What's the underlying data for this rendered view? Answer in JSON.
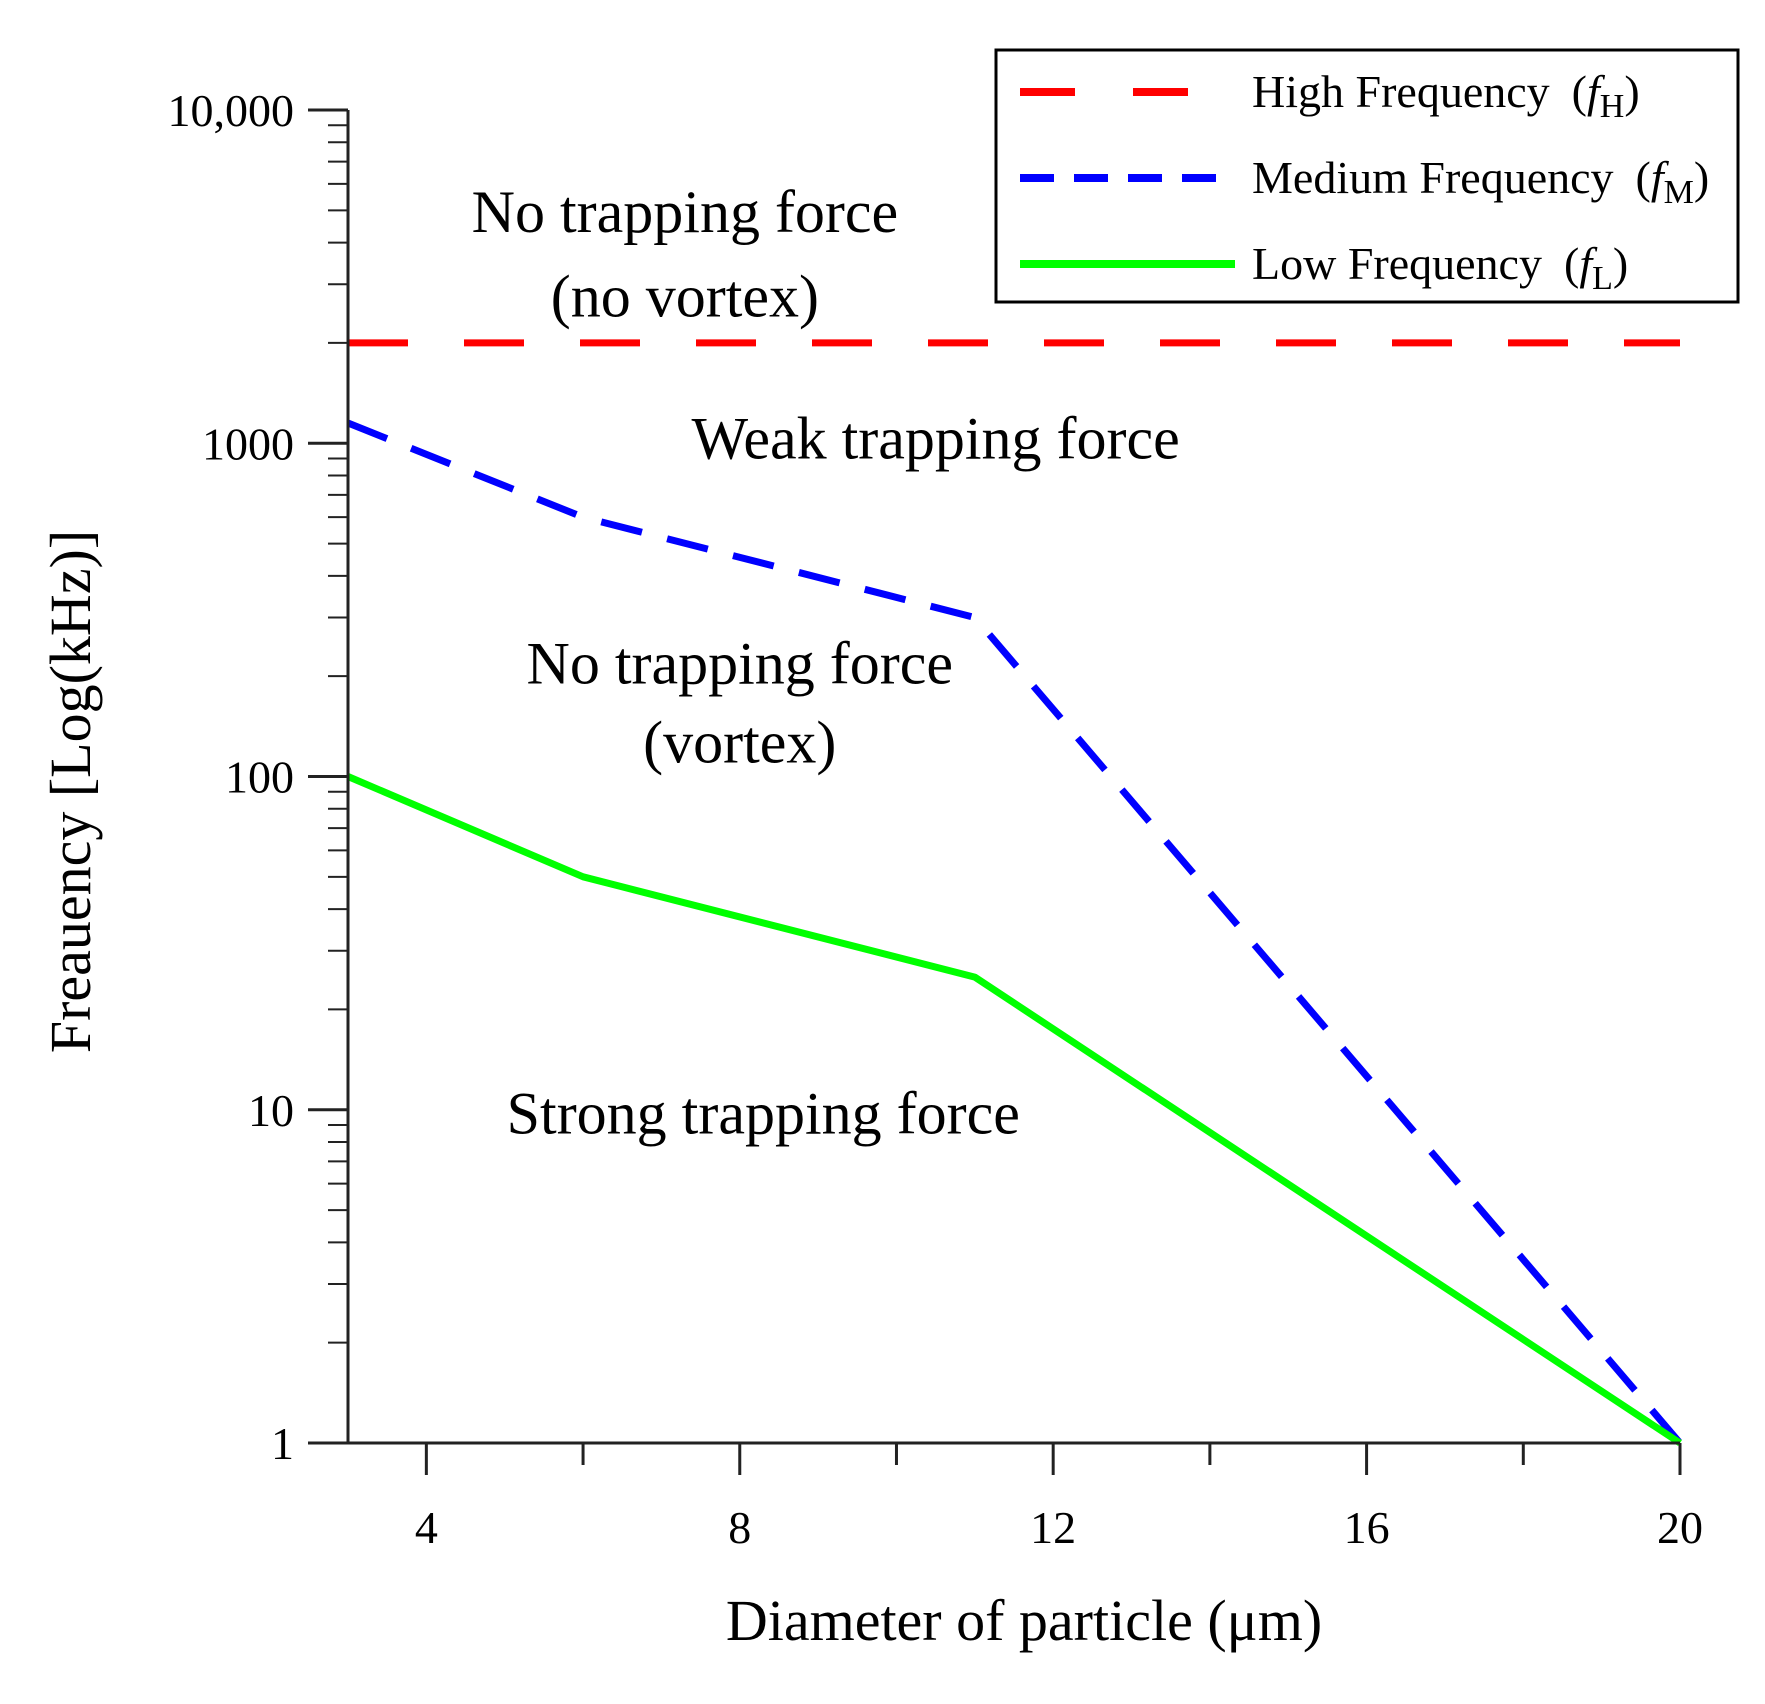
{
  "chart_data": {
    "type": "line",
    "title": "",
    "xlabel": "Diameter of particle (μm)",
    "ylabel": "Freauency [Log(kHz)]",
    "xlim": [
      3,
      20
    ],
    "ylim": [
      1,
      10000
    ],
    "yscale": "log",
    "x_ticks": [
      4,
      8,
      12,
      16,
      20
    ],
    "x_tick_labels": [
      "4",
      "8",
      "12",
      "16",
      "20"
    ],
    "y_ticks": [
      1,
      10,
      100,
      1000,
      10000
    ],
    "y_tick_labels": [
      "1",
      "10",
      "100",
      "1000",
      "10,000"
    ],
    "legend_position": "top-right",
    "series": [
      {
        "name": "High Frequency",
        "symbol": "f",
        "subscript": "H",
        "color": "#ff0000",
        "style": "long-dash",
        "x": [
          3,
          20
        ],
        "y": [
          2000,
          2000
        ]
      },
      {
        "name": "Medium Frequency",
        "symbol": "f",
        "subscript": "M",
        "color": "#0000ff",
        "style": "short-dash",
        "x": [
          3,
          6,
          11,
          20
        ],
        "y": [
          1150,
          600,
          300,
          1
        ]
      },
      {
        "name": "Low Frequency",
        "symbol": "f",
        "subscript": "L",
        "color": "#00ff00",
        "style": "solid",
        "x": [
          3,
          6,
          11,
          20
        ],
        "y": [
          100,
          50,
          25,
          1
        ]
      }
    ],
    "annotations": [
      {
        "id": "no-trap-no-vortex-1",
        "text": "No trapping force",
        "x": 7.3,
        "y": 4300
      },
      {
        "id": "no-trap-no-vortex-2",
        "text": "(no vortex)",
        "x": 7.3,
        "y": 2400
      },
      {
        "id": "weak-trap",
        "text": "Weak trapping force",
        "x": 10.5,
        "y": 900
      },
      {
        "id": "no-trap-vortex-1",
        "text": "No trapping force",
        "x": 8.0,
        "y": 190
      },
      {
        "id": "no-trap-vortex-2",
        "text": "(vortex)",
        "x": 8.0,
        "y": 110
      },
      {
        "id": "strong-trap",
        "text": "Strong trapping force",
        "x": 8.3,
        "y": 8.5
      }
    ]
  }
}
